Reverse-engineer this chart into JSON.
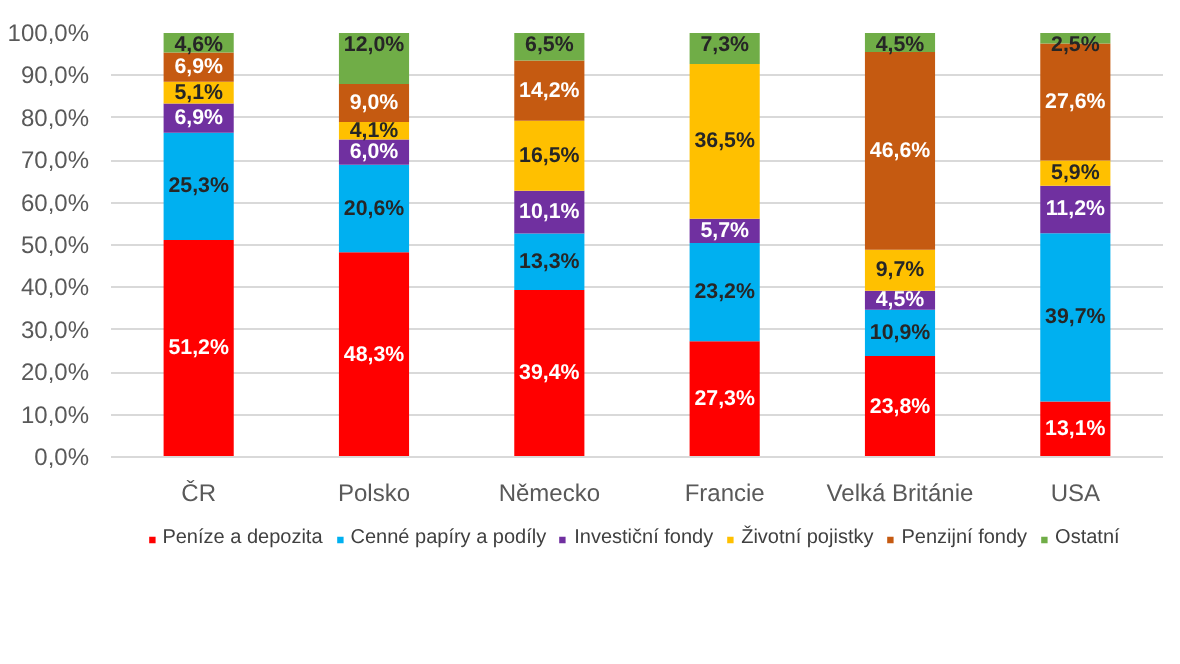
{
  "chart_data": {
    "type": "bar",
    "stacked": true,
    "categories": [
      "ČR",
      "Polsko",
      "Německo",
      "Francie",
      "Velká Británie",
      "USA"
    ],
    "series": [
      {
        "name": "Peníze a depozita",
        "color": "#ff0000",
        "values": [
          51.2,
          48.3,
          39.4,
          27.3,
          23.8,
          13.1
        ],
        "value_labels": [
          "51,2%",
          "48,3%",
          "39,4%",
          "27,3%",
          "23,8%",
          "13,1%"
        ]
      },
      {
        "name": "Cenné papíry a podíly",
        "color": "#00b0f0",
        "values": [
          25.3,
          20.6,
          13.3,
          23.2,
          10.9,
          39.7
        ],
        "value_labels": [
          "25,3%",
          "20,6%",
          "13,3%",
          "23,2%",
          "10,9%",
          "39,7%"
        ]
      },
      {
        "name": "Investiční fondy",
        "color": "#7030a0",
        "values": [
          6.9,
          6.0,
          10.1,
          5.7,
          4.5,
          11.2
        ],
        "value_labels": [
          "6,9%",
          "6,0%",
          "10,1%",
          "5,7%",
          "4,5%",
          "11,2%"
        ]
      },
      {
        "name": "Životní pojistky",
        "color": "#ffc000",
        "values": [
          5.1,
          4.1,
          16.5,
          36.5,
          9.7,
          5.9
        ],
        "value_labels": [
          "5,1%",
          "4,1%",
          "16,5%",
          "36,5%",
          "9,7%",
          "5,9%"
        ]
      },
      {
        "name": "Penzijní fondy",
        "color": "#c55a11",
        "values": [
          6.9,
          9.0,
          14.2,
          0,
          46.6,
          27.6
        ],
        "value_labels": [
          "6,9%",
          "9,0%",
          "14,2%",
          null,
          "46,6%",
          "27,6%"
        ]
      },
      {
        "name": "Ostatní",
        "color": "#70ad47",
        "values": [
          4.6,
          12.0,
          6.5,
          7.3,
          4.5,
          2.5
        ],
        "value_labels": [
          "4,6%",
          "12,0%",
          "6,5%",
          "7,3%",
          "4,5%",
          "2,5%"
        ]
      }
    ],
    "ylim": [
      0,
      100
    ],
    "yticks": [
      {
        "value": 0,
        "label": "0,0%"
      },
      {
        "value": 10,
        "label": "10,0%"
      },
      {
        "value": 20,
        "label": "20,0%"
      },
      {
        "value": 30,
        "label": "30,0%"
      },
      {
        "value": 40,
        "label": "40,0%"
      },
      {
        "value": 50,
        "label": "50,0%"
      },
      {
        "value": 60,
        "label": "60,0%"
      },
      {
        "value": 70,
        "label": "70,0%"
      },
      {
        "value": 80,
        "label": "80,0%"
      },
      {
        "value": 90,
        "label": "90,0%"
      },
      {
        "value": 100,
        "label": "100,0%"
      }
    ],
    "grid": "y",
    "legend": "bottom"
  }
}
